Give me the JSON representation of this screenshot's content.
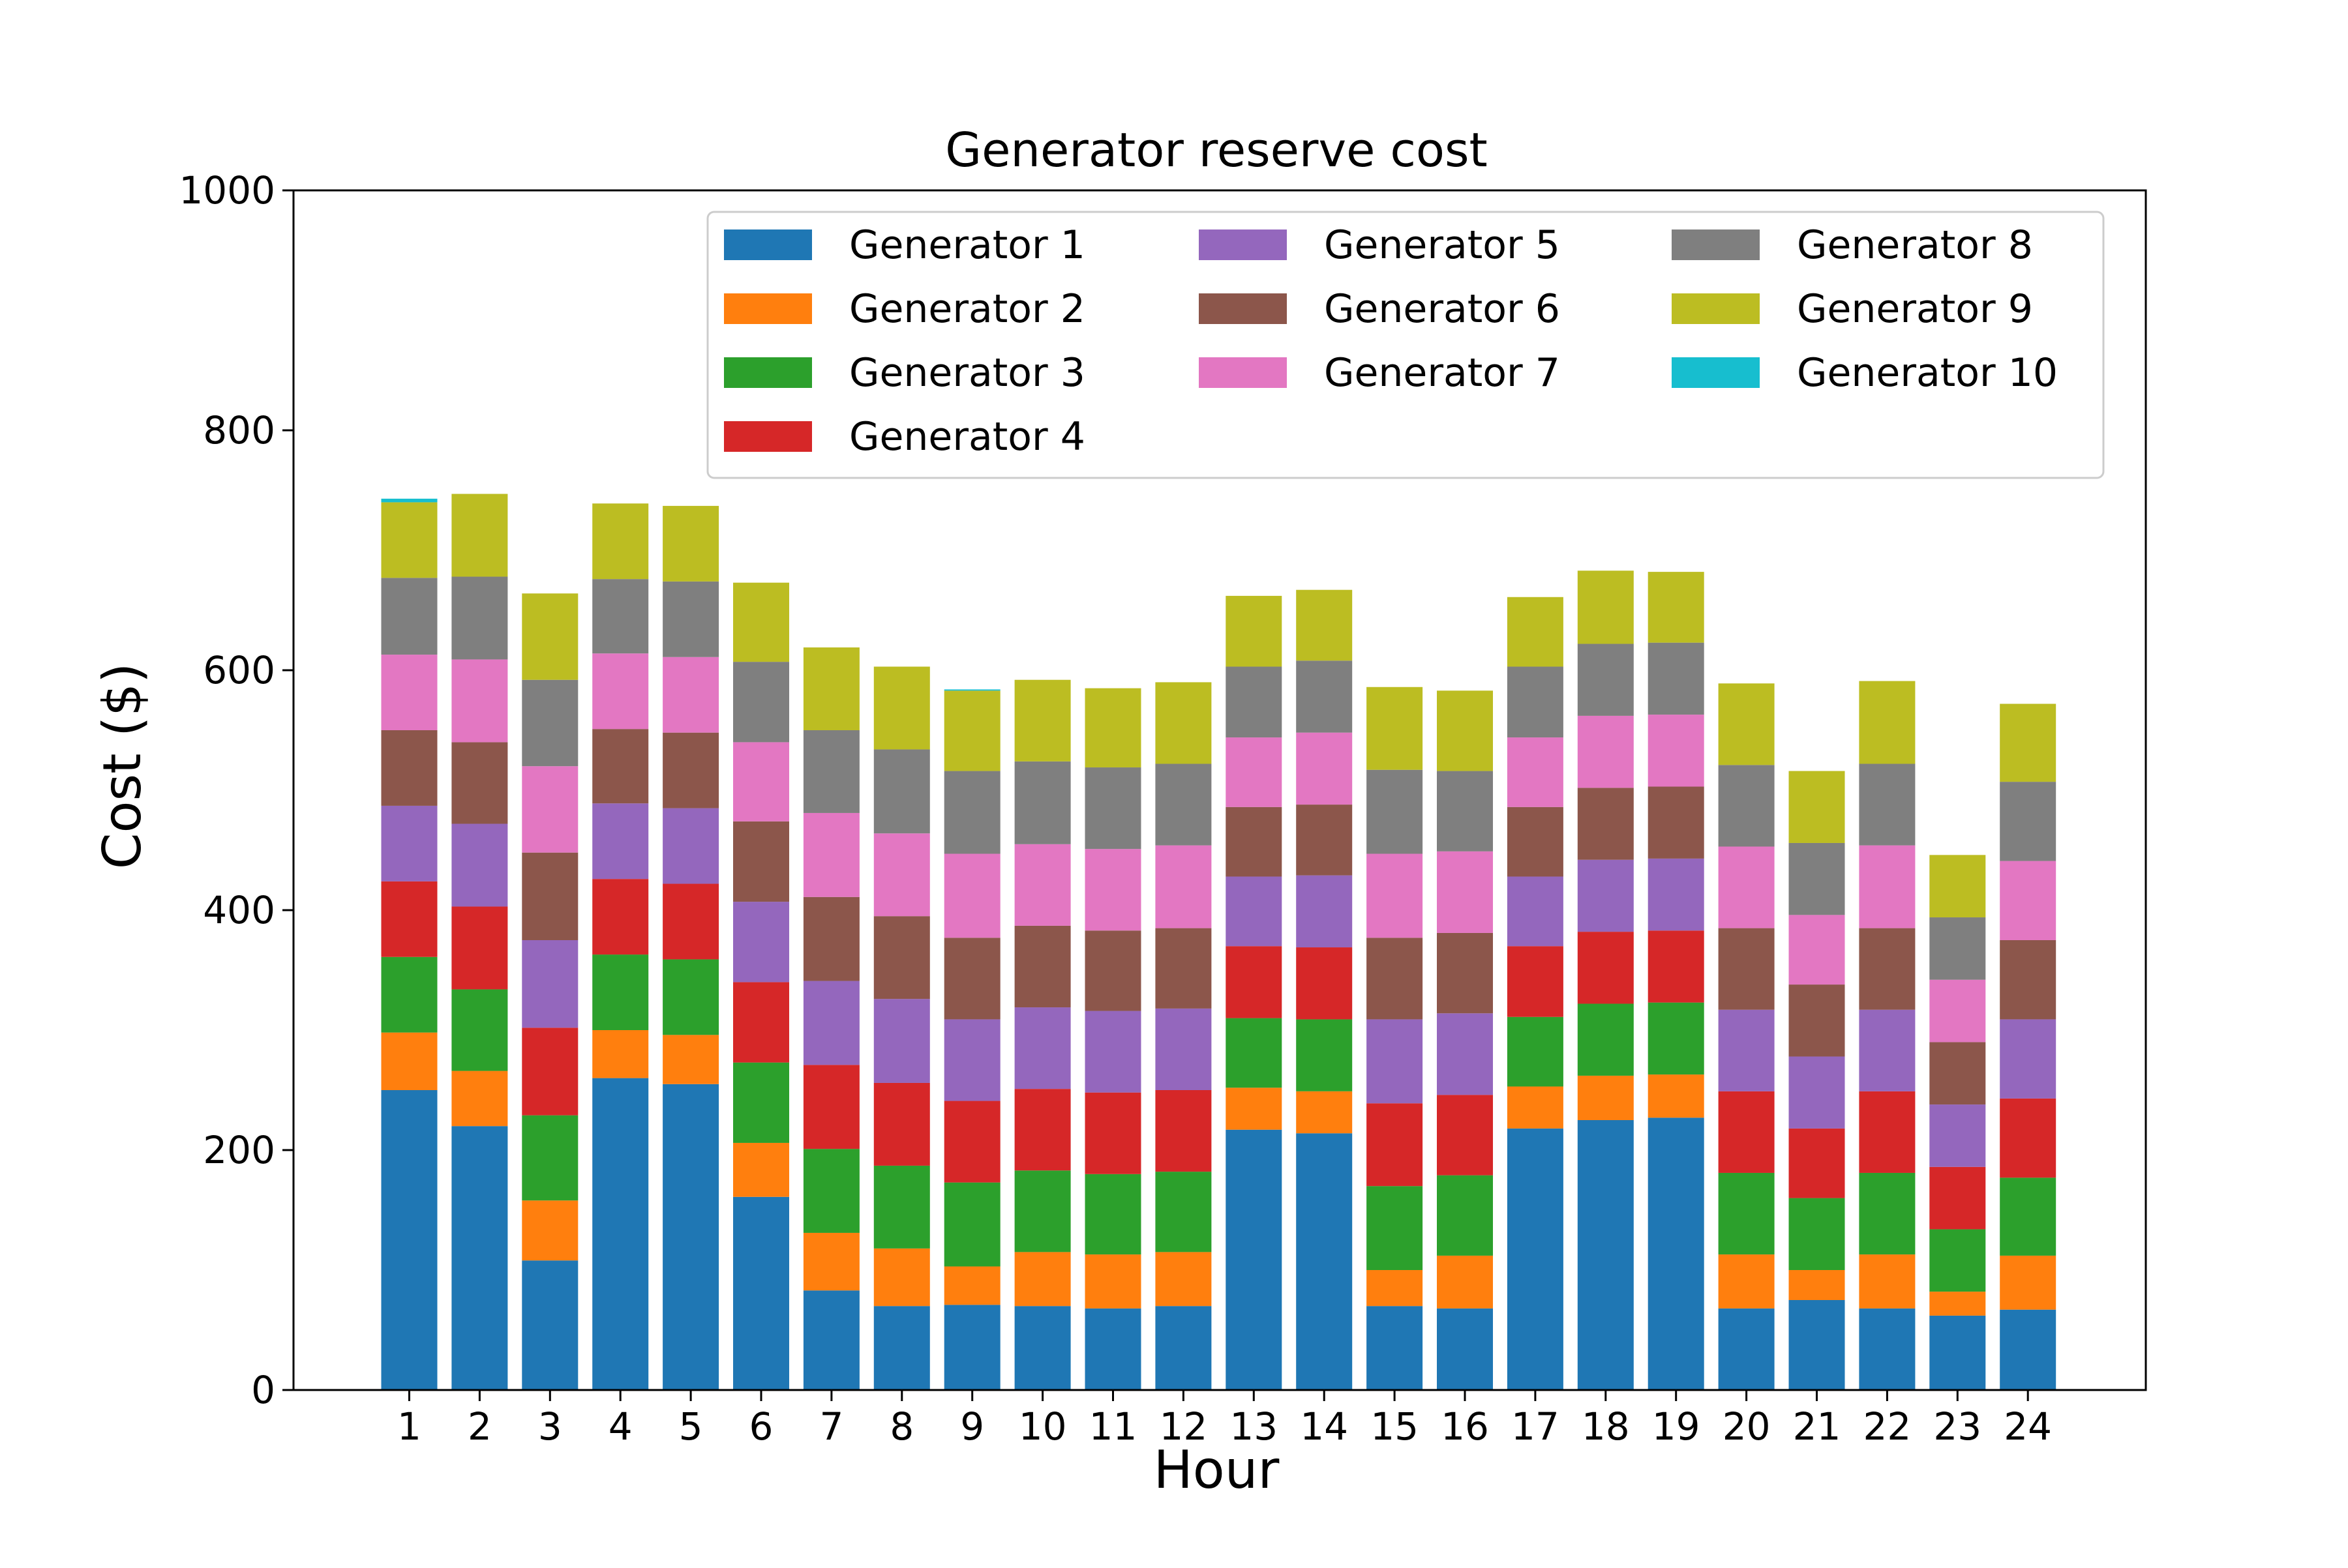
{
  "chart_data": {
    "type": "bar",
    "stacked": true,
    "title": "Generator reserve cost",
    "xlabel": "Hour",
    "ylabel": "Cost ($)",
    "ylim": [
      0,
      1000
    ],
    "yticks": [
      0,
      200,
      400,
      600,
      800,
      1000
    ],
    "categories": [
      "1",
      "2",
      "3",
      "4",
      "5",
      "6",
      "7",
      "8",
      "9",
      "10",
      "11",
      "12",
      "13",
      "14",
      "15",
      "16",
      "17",
      "18",
      "19",
      "20",
      "21",
      "22",
      "23",
      "24"
    ],
    "legend": {
      "placement": "top-right",
      "columns": 3
    },
    "grid": false,
    "series": [
      {
        "name": "Generator 1",
        "color": "#1f77b4",
        "values": [
          250,
          220,
          108,
          260,
          255,
          161,
          83,
          70,
          71,
          70,
          68,
          70,
          217,
          214,
          70,
          68,
          218,
          225,
          227,
          68,
          75,
          68,
          62,
          67
        ]
      },
      {
        "name": "Generator 2",
        "color": "#ff7f0e",
        "values": [
          48,
          46,
          50,
          40,
          41,
          45,
          48,
          48,
          32,
          45,
          45,
          45,
          35,
          35,
          30,
          44,
          35,
          37,
          36,
          45,
          25,
          45,
          20,
          45
        ]
      },
      {
        "name": "Generator 3",
        "color": "#2ca02c",
        "values": [
          63,
          68,
          71,
          63,
          63,
          67,
          70,
          69,
          70,
          68,
          67,
          67,
          58,
          60,
          70,
          67,
          58,
          60,
          60,
          68,
          60,
          68,
          52,
          65
        ]
      },
      {
        "name": "Generator 4",
        "color": "#d62728",
        "values": [
          63,
          69,
          73,
          63,
          63,
          67,
          70,
          69,
          68,
          68,
          68,
          68,
          60,
          60,
          69,
          67,
          59,
          60,
          60,
          68,
          58,
          68,
          52,
          66
        ]
      },
      {
        "name": "Generator 5",
        "color": "#9467bd",
        "values": [
          63,
          69,
          73,
          63,
          63,
          67,
          70,
          70,
          68,
          68,
          68,
          68,
          58,
          60,
          70,
          68,
          58,
          60,
          60,
          68,
          60,
          68,
          52,
          66
        ]
      },
      {
        "name": "Generator 6",
        "color": "#8c564b",
        "values": [
          63,
          68,
          73,
          62,
          63,
          67,
          70,
          69,
          68,
          68,
          67,
          67,
          58,
          59,
          68,
          67,
          58,
          60,
          60,
          68,
          60,
          68,
          52,
          66
        ]
      },
      {
        "name": "Generator 7",
        "color": "#e377c2",
        "values": [
          63,
          69,
          72,
          63,
          63,
          66,
          70,
          69,
          70,
          68,
          68,
          69,
          58,
          60,
          70,
          68,
          58,
          60,
          60,
          68,
          58,
          69,
          52,
          66
        ]
      },
      {
        "name": "Generator 8",
        "color": "#7f7f7f",
        "values": [
          64,
          69,
          72,
          62,
          63,
          67,
          69,
          70,
          69,
          69,
          68,
          68,
          59,
          60,
          70,
          67,
          59,
          60,
          60,
          68,
          60,
          68,
          52,
          66
        ]
      },
      {
        "name": "Generator 9",
        "color": "#bcbd22",
        "values": [
          63,
          69,
          72,
          63,
          63,
          66,
          69,
          69,
          67,
          68,
          66,
          68,
          59,
          59,
          69,
          67,
          58,
          61,
          59,
          68,
          60,
          69,
          52,
          65
        ]
      },
      {
        "name": "Generator 10",
        "color": "#17becf",
        "values": [
          3,
          0,
          0,
          0,
          0,
          0,
          0,
          0,
          1,
          0,
          0,
          0,
          0,
          0,
          0,
          0,
          0,
          0,
          0,
          0,
          0,
          0,
          0,
          0
        ]
      }
    ]
  }
}
